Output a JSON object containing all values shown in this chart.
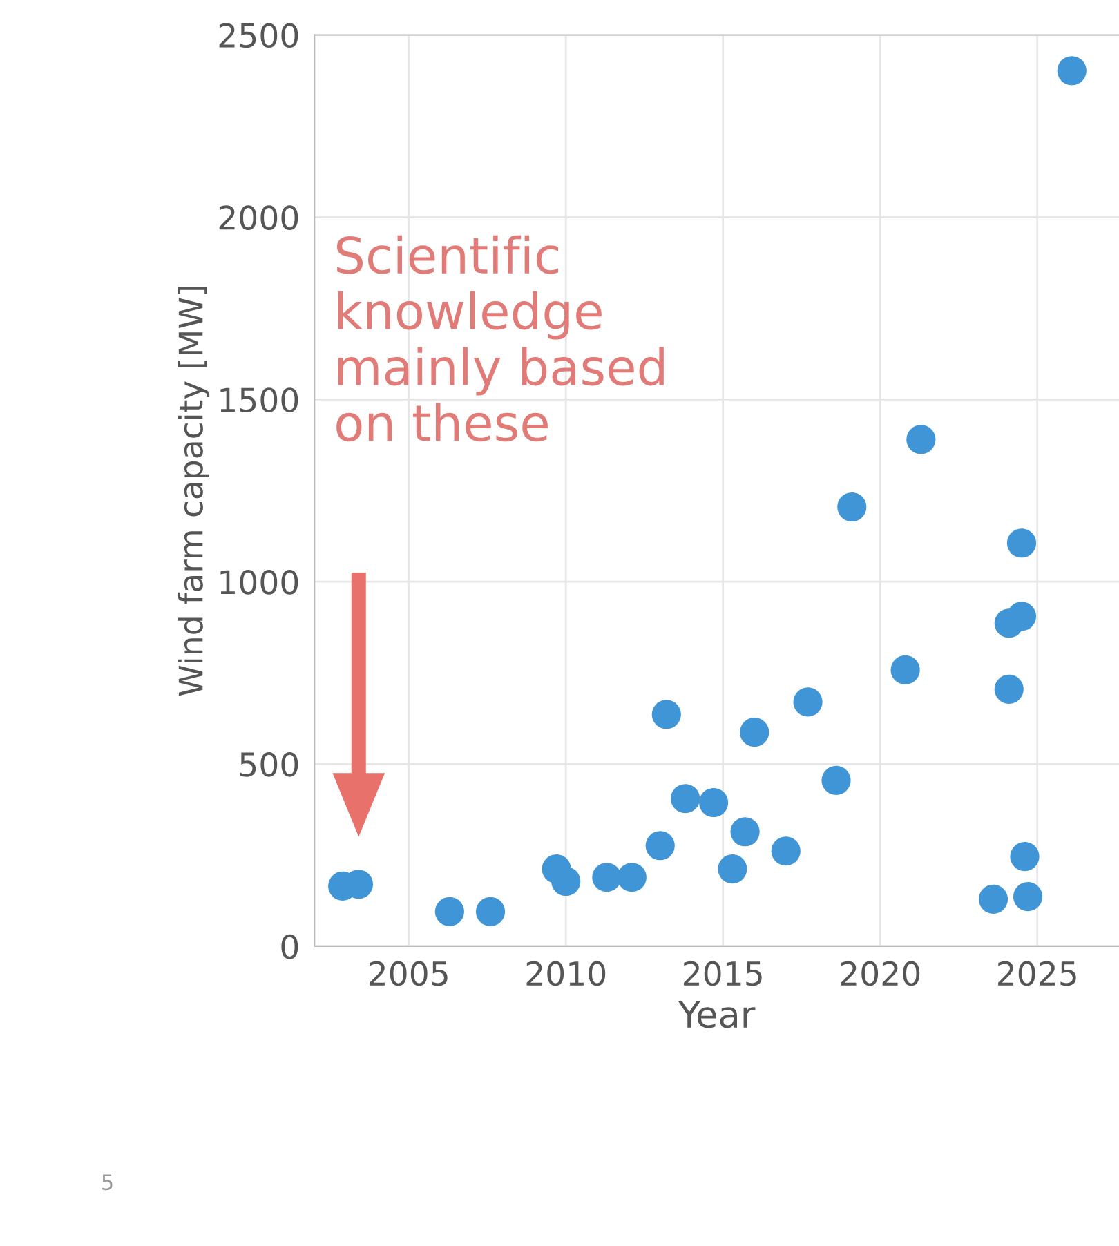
{
  "chart_data": {
    "type": "scatter",
    "xlabel": "Year",
    "ylabel": "Wind farm capacity [MW]",
    "xlim": [
      2002,
      2027.6
    ],
    "ylim": [
      0,
      2500
    ],
    "xticks": [
      2005,
      2010,
      2015,
      2020,
      2025
    ],
    "yticks": [
      0,
      500,
      1000,
      1500,
      2000,
      2500
    ],
    "grid": true,
    "marker": "circle",
    "series": [
      {
        "color": "#3f95d6",
        "x": [
          2002.9,
          2003.4,
          2006.3,
          2007.6,
          2009.7,
          2010.0,
          2011.3,
          2012.1,
          2013.0,
          2013.2,
          2013.8,
          2014.7,
          2015.3,
          2015.7,
          2016.0,
          2017.0,
          2017.7,
          2018.6,
          2019.1,
          2020.8,
          2021.3,
          2023.6,
          2024.1,
          2024.1,
          2024.5,
          2024.5,
          2024.6,
          2024.7,
          2026.1
        ],
        "values": [
          165,
          170,
          95,
          95,
          212,
          178,
          189,
          189,
          276,
          636,
          405,
          394,
          212,
          314,
          587,
          261,
          670,
          455,
          1205,
          758,
          1390,
          129,
          886,
          705,
          905,
          1106,
          246,
          136,
          2402
        ]
      }
    ],
    "annotations": [
      "Scientific\nknowledge\nmainly based\non these",
      "5"
    ]
  }
}
